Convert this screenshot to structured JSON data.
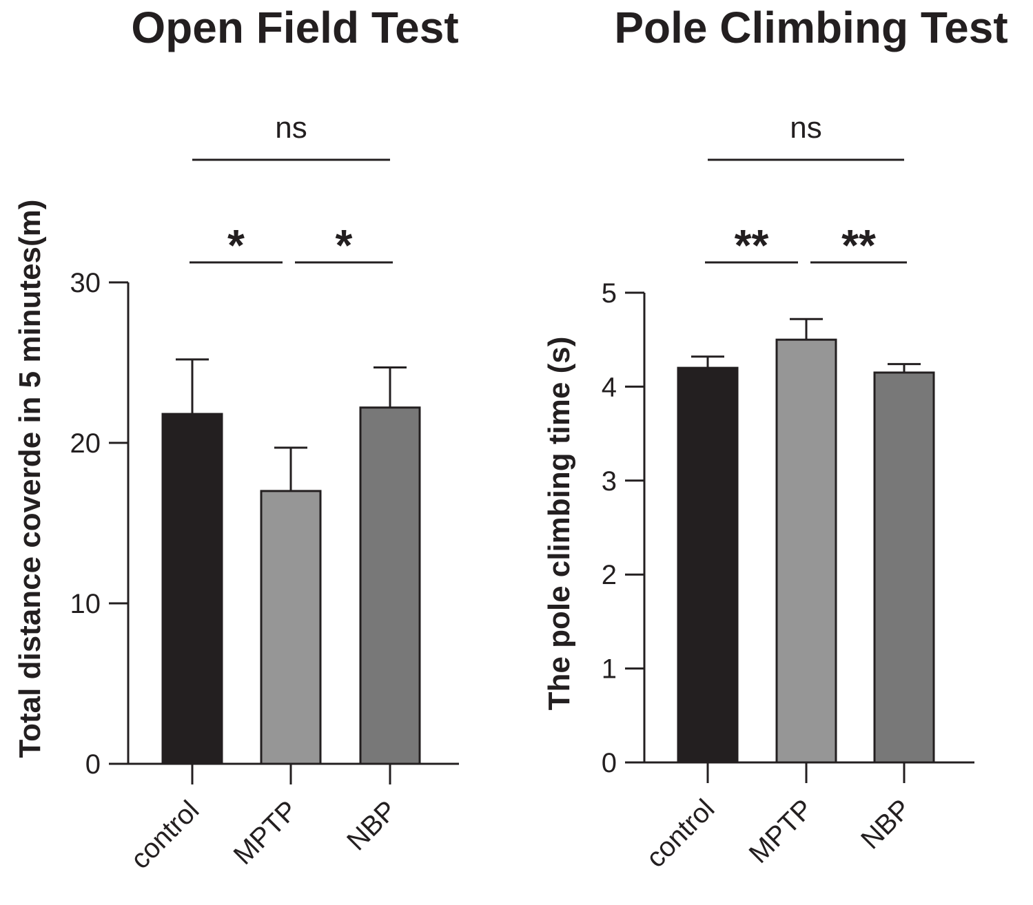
{
  "chart_data": [
    {
      "type": "bar",
      "title": "Open Field Test",
      "xlabel": "",
      "ylabel": "Total distance coverde in 5 minutes(m)",
      "categories": [
        "control",
        "MPTP",
        "NBP"
      ],
      "values": [
        21.8,
        17.0,
        22.2
      ],
      "errors": [
        3.4,
        2.7,
        2.5
      ],
      "colors": [
        "#231f20",
        "#969696",
        "#787878"
      ],
      "ylim": [
        0,
        30
      ],
      "yticks": [
        "0",
        "10",
        "20",
        "30"
      ],
      "ytick_values": [
        0,
        10,
        20,
        30
      ],
      "significance": [
        {
          "from": 0,
          "to": 1,
          "label": "*"
        },
        {
          "from": 1,
          "to": 2,
          "label": "*"
        },
        {
          "from": 0,
          "to": 2,
          "label": "ns"
        }
      ]
    },
    {
      "type": "bar",
      "title": "Pole Climbing Test",
      "xlabel": "",
      "ylabel": "The pole climbing time (s)",
      "categories": [
        "control",
        "MPTP",
        "NBP"
      ],
      "values": [
        4.2,
        4.5,
        4.15
      ],
      "errors": [
        0.12,
        0.22,
        0.09
      ],
      "colors": [
        "#231f20",
        "#969696",
        "#787878"
      ],
      "ylim": [
        0,
        5
      ],
      "yticks": [
        "0",
        "1",
        "2",
        "3",
        "4",
        "5"
      ],
      "ytick_values": [
        0,
        1,
        2,
        3,
        4,
        5
      ],
      "significance": [
        {
          "from": 0,
          "to": 1,
          "label": "**"
        },
        {
          "from": 1,
          "to": 2,
          "label": "**"
        },
        {
          "from": 0,
          "to": 2,
          "label": "ns"
        }
      ]
    }
  ]
}
